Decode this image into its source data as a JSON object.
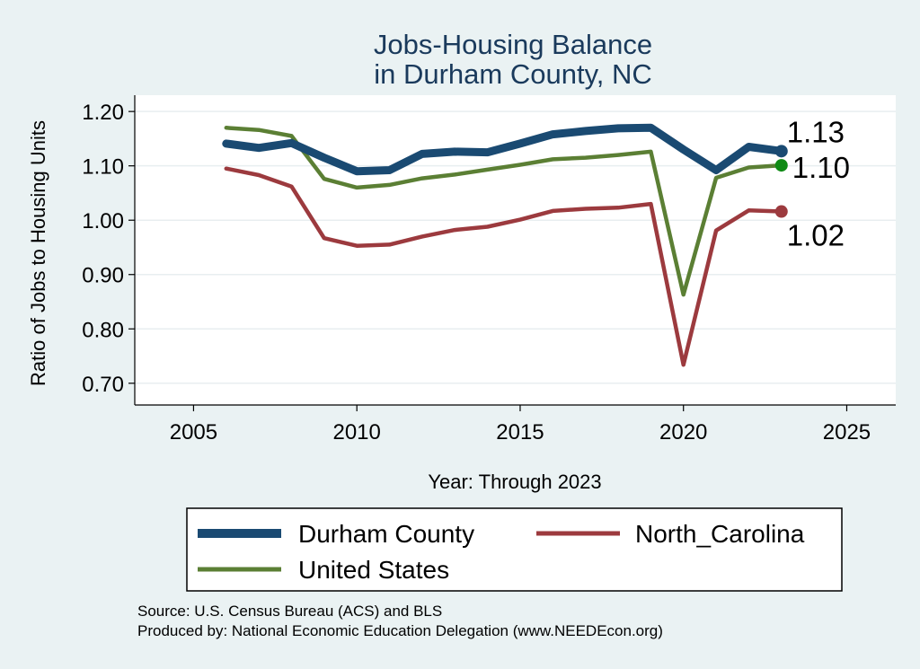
{
  "chart_data": {
    "type": "line",
    "title_line1": "Jobs-Housing Balance",
    "title_line2": "in Durham County, NC",
    "xlabel": "Year: Through 2023",
    "ylabel": "Ratio of Jobs to Housing Units",
    "xlim": [
      2003.2,
      2026.5
    ],
    "ylim": [
      0.66,
      1.23
    ],
    "xticks": [
      2005,
      2010,
      2015,
      2020,
      2025
    ],
    "yticks": [
      0.7,
      0.8,
      0.9,
      1.0,
      1.1,
      1.2
    ],
    "ytick_labels": [
      "0.70",
      "0.80",
      "0.90",
      "1.00",
      "1.10",
      "1.20"
    ],
    "x": [
      2006,
      2007,
      2008,
      2009,
      2010,
      2011,
      2012,
      2013,
      2014,
      2015,
      2016,
      2017,
      2018,
      2019,
      2020,
      2021,
      2022,
      2023
    ],
    "series": [
      {
        "name": "Durham County",
        "color": "#1a4a72",
        "values": [
          1.141,
          1.133,
          1.142,
          1.115,
          1.09,
          1.092,
          1.122,
          1.126,
          1.125,
          1.141,
          1.158,
          1.164,
          1.169,
          1.17,
          1.13,
          1.092,
          1.135,
          1.127
        ],
        "end_label": "1.13",
        "end_marker_color": "#1a4a72"
      },
      {
        "name": "United States",
        "color": "#5b7f34",
        "values": [
          1.17,
          1.166,
          1.155,
          1.076,
          1.06,
          1.065,
          1.077,
          1.084,
          1.093,
          1.102,
          1.112,
          1.115,
          1.12,
          1.126,
          0.863,
          1.078,
          1.097,
          1.101
        ],
        "end_label": "1.10",
        "end_marker_color": "#0f8a14"
      },
      {
        "name": "North_Carolina",
        "color": "#9c3a3e",
        "values": [
          1.095,
          1.083,
          1.062,
          0.967,
          0.953,
          0.955,
          0.97,
          0.982,
          0.988,
          1.001,
          1.017,
          1.021,
          1.023,
          1.03,
          0.734,
          0.981,
          1.018,
          1.016
        ],
        "end_label": "1.02",
        "end_marker_color": "#9c3a3e"
      }
    ],
    "legend": {
      "position": "bottom",
      "entries": [
        "Durham County",
        "North_Carolina",
        "United States"
      ]
    },
    "source_line1": "Source: U.S. Census Bureau (ACS) and BLS",
    "source_line2": "Produced by: National Economic Education Delegation (www.NEEDEcon.org)"
  }
}
